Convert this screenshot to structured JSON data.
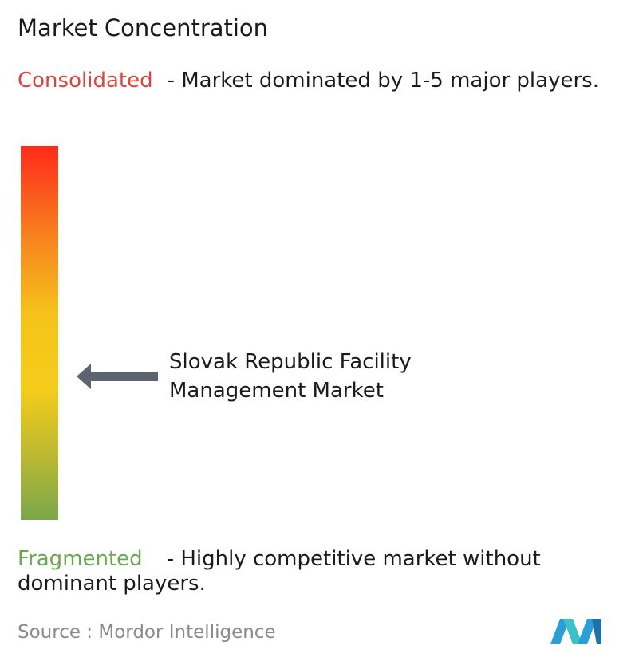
{
  "title": "Market Concentration",
  "consolidated": {
    "label": "Consolidated",
    "description": "- Market dominated by 1-5 major players."
  },
  "marker": {
    "label": "Slovak Republic Facility Management Market"
  },
  "fragmented": {
    "label": "Fragmented",
    "description": "- Highly competitive market without dominant players."
  },
  "source": "Source : Mordor Intelligence"
}
